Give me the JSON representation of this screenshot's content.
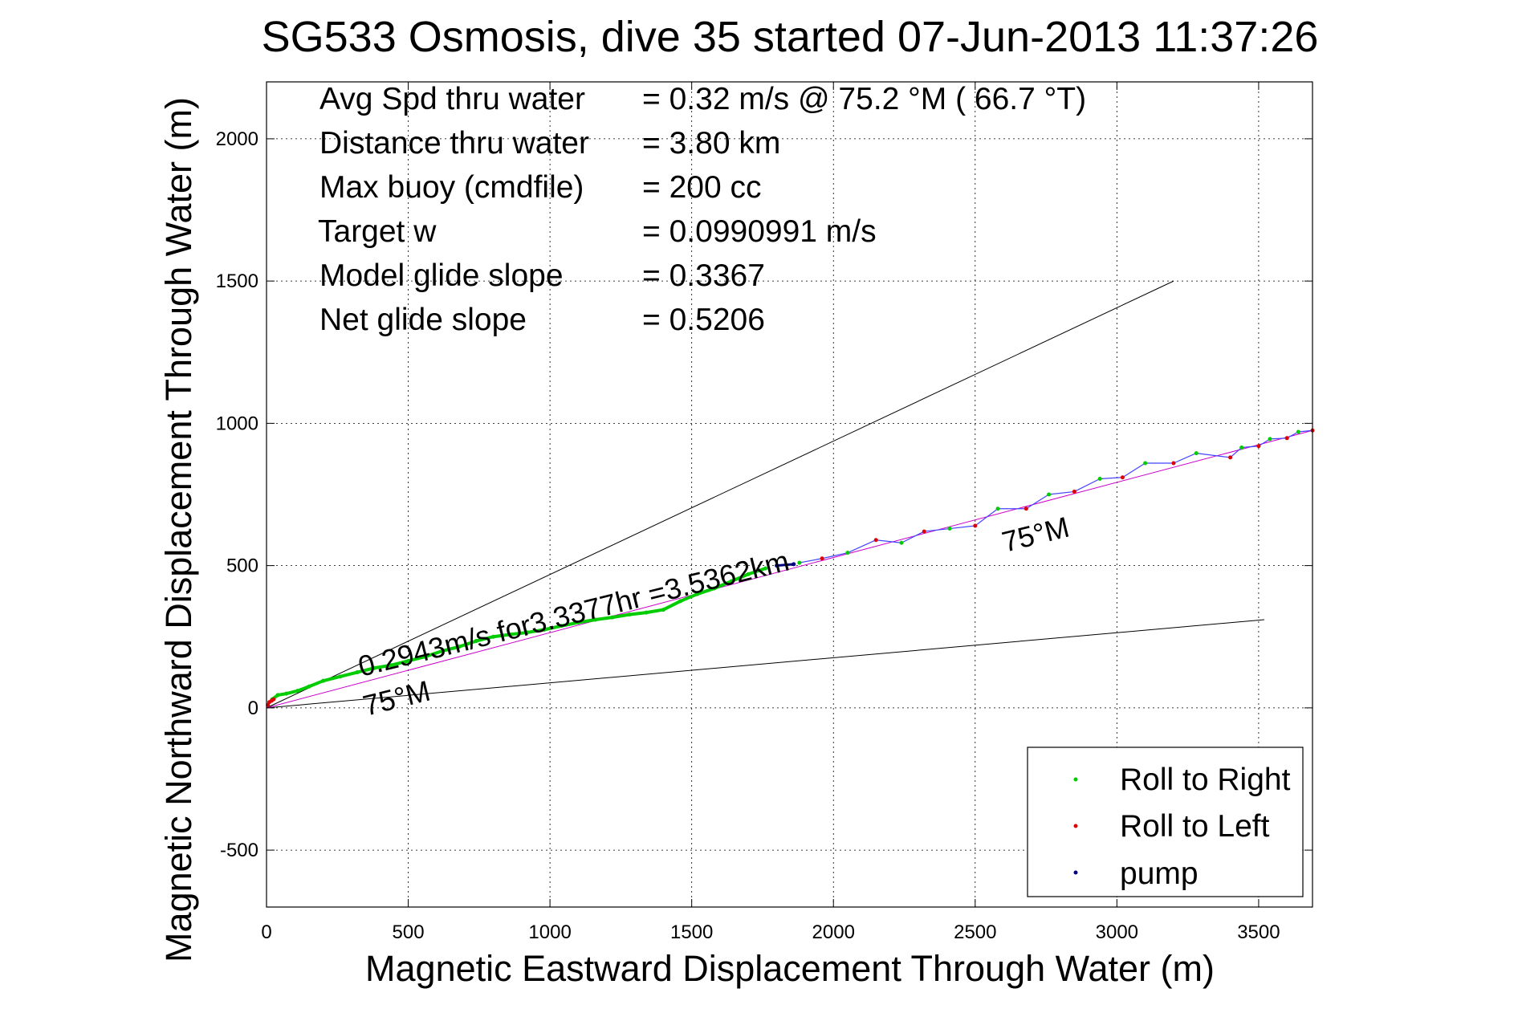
{
  "chart_data": {
    "type": "line",
    "title": "SG533 Osmosis, dive 35 started 07-Jun-2013 11:37:26",
    "xlabel": "Magnetic Eastward Displacement Through Water (m)",
    "ylabel": "Magnetic Northward Displacement Through Water (m)",
    "xlim": [
      0,
      3690
    ],
    "ylim": [
      -700,
      2200
    ],
    "xticks": [
      0,
      500,
      1000,
      1500,
      2000,
      2500,
      3000,
      3500
    ],
    "yticks": [
      -500,
      0,
      500,
      1000,
      1500,
      2000
    ],
    "grid": true,
    "info": [
      {
        "label": "Avg Spd thru water",
        "value": "=  0.32 m/s @  75.2 °M ( 66.7 °T)"
      },
      {
        "label": "Distance thru water",
        "value": "=  3.80 km"
      },
      {
        "label": "Max buoy (cmdfile)",
        "value": "= 200 cc"
      },
      {
        "label": "Target w",
        "value": "= 0.0990991 m/s"
      },
      {
        "label": "Model glide slope",
        "value": "= 0.3367"
      },
      {
        "label": "Net glide slope",
        "value": "= 0.5206"
      }
    ],
    "annotations": {
      "along_track": "0.2943m/s for3.3377hr =3.5362km",
      "heading_lower": "75°M",
      "heading_right": "75°M"
    },
    "guide_lines": [
      {
        "x": [
          0,
          3200
        ],
        "y": [
          0,
          1500
        ]
      },
      {
        "x": [
          0,
          3520
        ],
        "y": [
          0,
          310
        ]
      }
    ],
    "mean_track": {
      "x": [
        0,
        3690
      ],
      "y": [
        0,
        975
      ]
    },
    "legend": {
      "position": "lower-right",
      "entries": [
        "Roll to Right",
        "Roll to Left",
        "pump"
      ]
    },
    "series": [
      {
        "name": "Roll to Right",
        "color": "#00cc00",
        "x": [
          20,
          40,
          70,
          110,
          150,
          200,
          260,
          320,
          380,
          440,
          500,
          560,
          620,
          680,
          740,
          800,
          860,
          920,
          980,
          1040,
          1100,
          1160,
          1220,
          1280,
          1340,
          1400,
          1460,
          1520,
          1580,
          1640,
          1700,
          1760
        ],
        "y": [
          30,
          45,
          50,
          60,
          75,
          95,
          110,
          125,
          140,
          150,
          165,
          180,
          200,
          215,
          235,
          250,
          258,
          265,
          275,
          288,
          300,
          310,
          318,
          328,
          335,
          345,
          375,
          400,
          420,
          445,
          470,
          490
        ]
      },
      {
        "name": "Roll to Left",
        "color": "#dd0000",
        "x": [
          5,
          10,
          18,
          25
        ],
        "y": [
          10,
          20,
          25,
          30
        ]
      },
      {
        "name": "pump",
        "color": "#000080",
        "x": [
          1800,
          1860
        ],
        "y": [
          500,
          505
        ]
      },
      {
        "name": "",
        "color": "#4444ff",
        "x": [
          1880,
          1960,
          2050,
          2150,
          2240,
          2320,
          2410,
          2500,
          2580,
          2680,
          2760,
          2850,
          2940,
          3020,
          3100,
          3200,
          3280,
          3400,
          3440,
          3500,
          3540,
          3600,
          3640,
          3690
        ],
        "y": [
          510,
          525,
          545,
          590,
          580,
          620,
          630,
          640,
          700,
          700,
          750,
          760,
          805,
          810,
          860,
          860,
          895,
          880,
          915,
          920,
          945,
          948,
          970,
          975
        ]
      }
    ]
  }
}
